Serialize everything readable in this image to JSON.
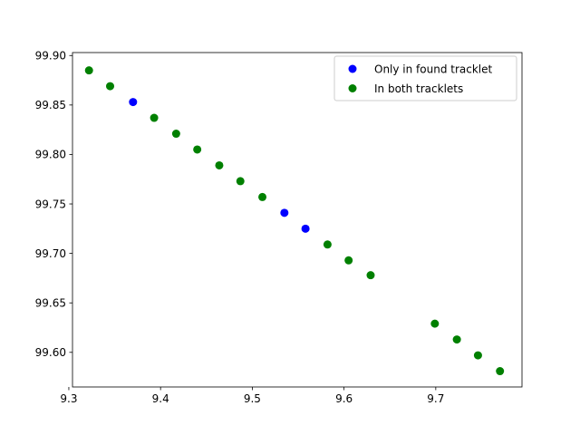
{
  "chart_data": {
    "type": "scatter",
    "title": "",
    "xlabel": "",
    "ylabel": "",
    "xlim": [
      9.304,
      9.794
    ],
    "ylim": [
      99.565,
      99.903
    ],
    "xticks": [
      9.3,
      9.4,
      9.5,
      9.6,
      9.7
    ],
    "xtick_labels": [
      "9.3",
      "9.4",
      "9.5",
      "9.6",
      "9.7"
    ],
    "yticks": [
      99.6,
      99.65,
      99.7,
      99.75,
      99.8,
      99.85,
      99.9
    ],
    "ytick_labels": [
      "99.60",
      "99.65",
      "99.70",
      "99.75",
      "99.80",
      "99.85",
      "99.90"
    ],
    "grid": false,
    "legend_position": "upper right",
    "series": [
      {
        "name": "Only in found tracklet",
        "color": "#0000ff",
        "points": [
          {
            "x": 9.37,
            "y": 99.853
          },
          {
            "x": 9.535,
            "y": 99.741
          },
          {
            "x": 9.558,
            "y": 99.725
          }
        ]
      },
      {
        "name": "In both tracklets",
        "color": "#008000",
        "points": [
          {
            "x": 9.322,
            "y": 99.885
          },
          {
            "x": 9.345,
            "y": 99.869
          },
          {
            "x": 9.393,
            "y": 99.837
          },
          {
            "x": 9.417,
            "y": 99.821
          },
          {
            "x": 9.44,
            "y": 99.805
          },
          {
            "x": 9.464,
            "y": 99.789
          },
          {
            "x": 9.487,
            "y": 99.773
          },
          {
            "x": 9.511,
            "y": 99.757
          },
          {
            "x": 9.582,
            "y": 99.709
          },
          {
            "x": 9.605,
            "y": 99.693
          },
          {
            "x": 9.629,
            "y": 99.678
          },
          {
            "x": 9.699,
            "y": 99.629
          },
          {
            "x": 9.723,
            "y": 99.613
          },
          {
            "x": 9.746,
            "y": 99.597
          },
          {
            "x": 9.77,
            "y": 99.581
          }
        ]
      }
    ]
  }
}
